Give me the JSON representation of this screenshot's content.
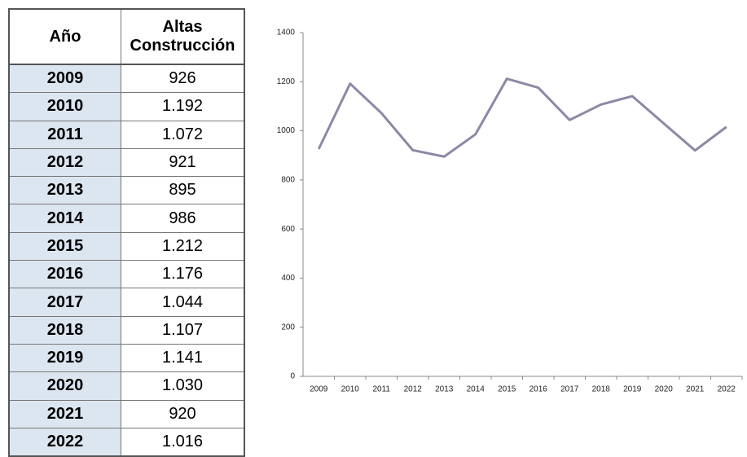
{
  "table": {
    "header": [
      "Año",
      "Altas Construcción"
    ],
    "rows": [
      [
        "2009",
        "926"
      ],
      [
        "2010",
        "1.192"
      ],
      [
        "2011",
        "1.072"
      ],
      [
        "2012",
        "921"
      ],
      [
        "2013",
        "895"
      ],
      [
        "2014",
        "986"
      ],
      [
        "2015",
        "1.212"
      ],
      [
        "2016",
        "1.176"
      ],
      [
        "2017",
        "1.044"
      ],
      [
        "2018",
        "1.107"
      ],
      [
        "2019",
        "1.141"
      ],
      [
        "2020",
        "1.030"
      ],
      [
        "2021",
        "920"
      ],
      [
        "2022",
        "1.016"
      ]
    ]
  },
  "chart_data": {
    "type": "line",
    "categories": [
      "2009",
      "2010",
      "2011",
      "2012",
      "2013",
      "2014",
      "2015",
      "2016",
      "2017",
      "2018",
      "2019",
      "2020",
      "2021",
      "2022"
    ],
    "series": [
      {
        "name": "Altas Construcción",
        "color": "#8c89a6",
        "values": [
          926,
          1192,
          1072,
          921,
          895,
          986,
          1212,
          1176,
          1044,
          1107,
          1141,
          1030,
          920,
          1016
        ]
      }
    ],
    "ylim": [
      0,
      1400
    ],
    "yticks": [
      0,
      200,
      400,
      600,
      800,
      1000,
      1200,
      1400
    ],
    "grid": false,
    "legend": false
  }
}
